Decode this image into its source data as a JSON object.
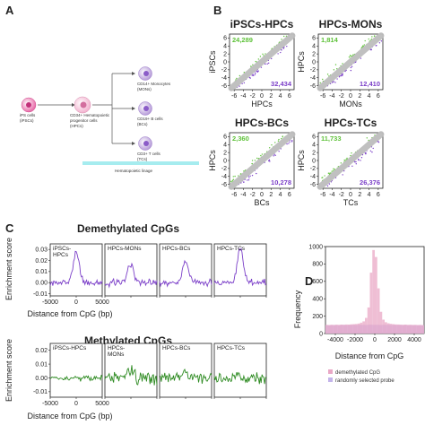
{
  "panels": {
    "a": "A",
    "b": "B",
    "c": "C",
    "d": "D"
  },
  "panel_a": {
    "ips_label": [
      "iPS cells",
      "(iPSCs)"
    ],
    "hpc_label": [
      "CD34+ Hematopoietic",
      "progenitor cells",
      "(HPCs)"
    ],
    "mon_label": [
      "CD14+ Monocytes",
      "(MONs)"
    ],
    "bc_label": [
      "CD19+ B cells",
      "(BCs)"
    ],
    "tc_label": [
      "CD3+ T cells",
      "(TCs)"
    ],
    "lineage_bar": "Hematopoietic linage",
    "colors": {
      "ips": "#e86aa8",
      "hpc": "#f3b2cf",
      "diff": "#b79cd9",
      "bar": "#a6ecef"
    }
  },
  "panel_b": {
    "colors": {
      "up": "#5fc23a",
      "down": "#7b3fc8",
      "mid": "#bdbdbd"
    },
    "tick_values": [
      "-6",
      "-4",
      "-2",
      "0",
      "2",
      "4",
      "6"
    ],
    "y_tick_values": [
      "6",
      "4",
      "2",
      "0",
      "-2",
      "-4",
      "-6"
    ],
    "plots": [
      {
        "title": "iPSCs-HPCs",
        "xlabel": "HPCs",
        "ylabel": "iPSCs",
        "green": "24,289",
        "purple": "32,434"
      },
      {
        "title": "HPCs-MONs",
        "xlabel": "MONs",
        "ylabel": "HPCs",
        "green": "1,814",
        "purple": "12,410"
      },
      {
        "title": "HPCs-BCs",
        "xlabel": "BCs",
        "ylabel": "HPCs",
        "green": "2,360",
        "purple": "10,278"
      },
      {
        "title": "HPCs-TCs",
        "xlabel": "TCs",
        "ylabel": "HPCs",
        "green": "11,733",
        "purple": "26,376"
      }
    ]
  },
  "panel_c": {
    "demeth_title": "Demethylated CpGs",
    "meth_title": "Methylated CpGs",
    "ylabel": "Enrichment score",
    "xlabel": "Distance from CpG (bp)",
    "x_ticks": [
      "-5000",
      "0",
      "5000"
    ],
    "demeth_y_ticks": [
      "0.03",
      "0.02",
      "0.01",
      "0.00",
      "-0.01"
    ],
    "meth_y_ticks": [
      "0.02",
      "0.01",
      "0.00",
      "-0.01"
    ],
    "demeth_labels": [
      [
        "iPSCs-",
        "HPCs"
      ],
      [
        "HPCs-MONs"
      ],
      [
        "HPCs-BCs"
      ],
      [
        "HPCs-TCs"
      ]
    ],
    "meth_labels": [
      [
        "iPSCs-HPCs"
      ],
      [
        "HPCs-",
        "MONs"
      ],
      [
        "HPCs-BCs"
      ],
      [
        "HPCs-TCs"
      ]
    ],
    "colors": {
      "demeth": "#7b3fc8",
      "meth": "#2e8b22"
    }
  },
  "panel_d": {
    "ylabel": "Frequency",
    "xlabel": "Distance from CpG",
    "x_ticks": [
      "-4000",
      "-2000",
      "0",
      "2000",
      "4000"
    ],
    "y_ticks": [
      "1000",
      "800",
      "600",
      "400",
      "200",
      "0"
    ],
    "legend": [
      "demethylated CpG",
      "randomly selected probe"
    ],
    "colors": {
      "demeth": "#e9a8c6",
      "random": "#c3b4ea"
    }
  },
  "chart_data": [
    {
      "type": "bar",
      "panel": "D",
      "xlabel": "Distance from CpG",
      "ylabel": "Frequency",
      "xlim": [
        -5000,
        5000
      ],
      "ylim": [
        0,
        1000
      ],
      "bin_width": 250,
      "x": [
        -4875,
        -4625,
        -4375,
        -4125,
        -3875,
        -3625,
        -3375,
        -3125,
        -2875,
        -2625,
        -2375,
        -2125,
        -1875,
        -1625,
        -1375,
        -1125,
        -875,
        -625,
        -375,
        -125,
        125,
        375,
        625,
        875,
        1125,
        1375,
        1625,
        1875,
        2125,
        2375,
        2625,
        2875,
        3125,
        3375,
        3625,
        3875,
        4125,
        4375,
        4625,
        4875
      ],
      "series": [
        {
          "name": "randomly selected probe",
          "values": [
            95,
            97,
            96,
            98,
            97,
            96,
            98,
            99,
            97,
            98,
            99,
            100,
            99,
            100,
            101,
            100,
            99,
            101,
            102,
            100,
            101,
            100,
            99,
            101,
            100,
            100,
            99,
            100,
            99,
            98,
            99,
            97,
            98,
            97,
            96,
            97,
            96,
            95,
            96,
            95
          ]
        },
        {
          "name": "demethylated CpG",
          "values": [
            100,
            98,
            101,
            99,
            102,
            100,
            103,
            101,
            104,
            103,
            106,
            108,
            110,
            115,
            125,
            140,
            180,
            300,
            700,
            960,
            880,
            520,
            250,
            160,
            130,
            118,
            112,
            108,
            105,
            104,
            102,
            101,
            103,
            100,
            101,
            99,
            100,
            98,
            99,
            97
          ]
        }
      ]
    }
  ]
}
